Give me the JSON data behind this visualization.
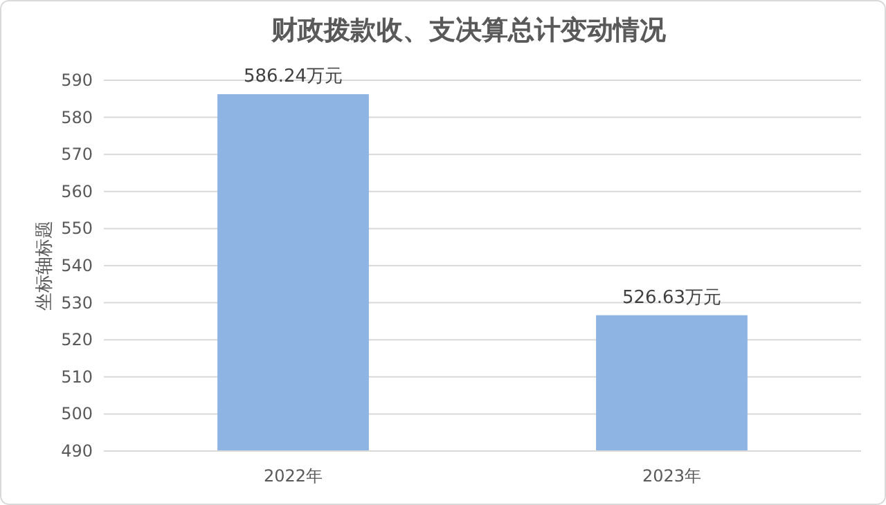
{
  "chart_data": {
    "type": "bar",
    "title": "财政拨款收、支决算总计变动情况",
    "ylabel": "坐标轴标题",
    "categories": [
      "2022年",
      "2023年"
    ],
    "values": [
      586.24,
      526.63
    ],
    "value_labels": [
      "586.24万元",
      "526.63万元"
    ],
    "color": "#8eb4e3",
    "ylim": [
      490,
      590
    ],
    "yticks": [
      490,
      500,
      510,
      520,
      530,
      540,
      550,
      560,
      570,
      580,
      590
    ],
    "grid": "y"
  }
}
